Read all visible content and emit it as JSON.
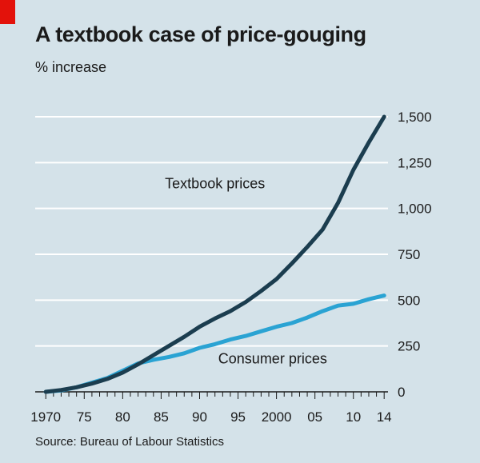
{
  "header": {
    "title": "A textbook case of price-gouging",
    "subtitle": "% increase"
  },
  "footer": {
    "source": "Source: Bureau of Labour Statistics"
  },
  "colors": {
    "background": "#d4e2e9",
    "gridline": "#ffffff",
    "textbook": "#1b3d4f",
    "consumer": "#2aa3d3",
    "accent": "#e3120b"
  },
  "chart_data": {
    "type": "line",
    "title": "A textbook case of price-gouging",
    "subtitle": "% increase",
    "ylabel": "% increase",
    "xlabel": "",
    "xlim": [
      1968,
      2014.5
    ],
    "ylim": [
      0,
      1500
    ],
    "y_ticks": [
      0,
      250,
      500,
      750,
      1000,
      1250,
      1500
    ],
    "y_tick_labels": [
      "0",
      "250",
      "500",
      "750",
      "1,000",
      "1,250",
      "1,500"
    ],
    "y_axis_position": "right",
    "x_tick_labels": [
      {
        "x": 1970,
        "label": "1970"
      },
      {
        "x": 1975,
        "label": "75"
      },
      {
        "x": 1980,
        "label": "80"
      },
      {
        "x": 1985,
        "label": "85"
      },
      {
        "x": 1990,
        "label": "90"
      },
      {
        "x": 1995,
        "label": "95"
      },
      {
        "x": 2000,
        "label": "2000"
      },
      {
        "x": 2005,
        "label": "05"
      },
      {
        "x": 2010,
        "label": "10"
      },
      {
        "x": 2014,
        "label": "14"
      }
    ],
    "grid": true,
    "legend": "inline labels",
    "series": [
      {
        "name": "Textbook prices",
        "label_position": {
          "x": 1992,
          "y": 1110
        },
        "x": [
          1970,
          1972,
          1974,
          1976,
          1978,
          1980,
          1982,
          1984,
          1986,
          1988,
          1990,
          1992,
          1994,
          1996,
          1998,
          2000,
          2002,
          2004,
          2006,
          2008,
          2010,
          2012,
          2014
        ],
        "values": [
          0,
          10,
          25,
          45,
          70,
          105,
          150,
          200,
          250,
          300,
          355,
          400,
          440,
          490,
          550,
          615,
          700,
          790,
          885,
          1030,
          1210,
          1360,
          1500
        ]
      },
      {
        "name": "Consumer prices",
        "label_position": {
          "x": 1999.5,
          "y": 155
        },
        "x": [
          1970,
          1972,
          1974,
          1976,
          1978,
          1980,
          1982,
          1984,
          1986,
          1988,
          1990,
          1992,
          1994,
          1996,
          1998,
          2000,
          2002,
          2004,
          2006,
          2008,
          2010,
          2012,
          2014
        ],
        "values": [
          0,
          8,
          25,
          50,
          75,
          115,
          155,
          175,
          190,
          210,
          240,
          260,
          285,
          305,
          330,
          355,
          375,
          405,
          440,
          470,
          480,
          505,
          525
        ]
      }
    ]
  }
}
